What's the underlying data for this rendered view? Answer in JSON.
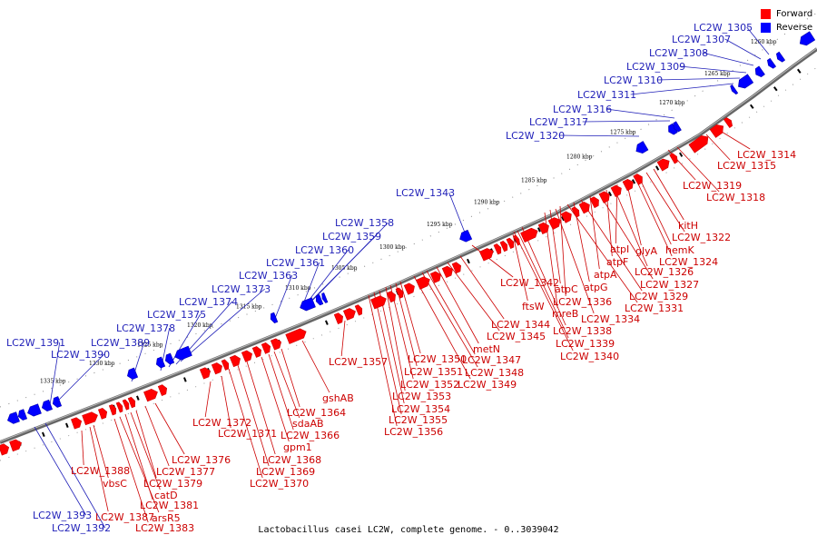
{
  "caption": "Lactobacillus casei LC2W, complete genome. - 0..3039042",
  "legend": [
    {
      "label": "Forward",
      "color": "#ff0000"
    },
    {
      "label": "Reverse",
      "color": "#0000ff"
    }
  ],
  "colors": {
    "forward": "#ff0000",
    "forward_dark": "#cc0000",
    "reverse": "#0000ff",
    "reverse_dark": "#0000b0",
    "forward_label": "#cc0000",
    "reverse_label": "#1f1fb8",
    "backbone": "#666666"
  },
  "scale_ticks": [
    "1260 kbp",
    "1265 kbp",
    "1270 kbp",
    "1275 kbp",
    "1280 kbp",
    "1285 kbp",
    "1290 kbp",
    "1295 kbp",
    "1300 kbp",
    "1305 kbp",
    "1310 kbp",
    "1315 kbp",
    "1320 kbp",
    "1325 kbp",
    "1330 kbp",
    "1335 kbp"
  ],
  "reverse_genes": [
    "LC2W_1305",
    "LC2W_1307",
    "LC2W_1308",
    "LC2W_1309",
    "LC2W_1310",
    "LC2W_1311",
    "LC2W_1316",
    "LC2W_1317",
    "LC2W_1320",
    "LC2W_1343",
    "LC2W_1358",
    "LC2W_1359",
    "LC2W_1360",
    "LC2W_1361",
    "LC2W_1363",
    "LC2W_1373",
    "LC2W_1374",
    "LC2W_1375",
    "LC2W_1378",
    "LC2W_1389",
    "LC2W_1391",
    "LC2W_1390",
    "LC2W_1393",
    "LC2W_1392"
  ],
  "forward_genes": [
    "LC2W_1314",
    "LC2W_1315",
    "LC2W_1319",
    "LC2W_1318",
    "kitH",
    "LC2W_1322",
    "hemK",
    "LC2W_1324",
    "glyA",
    "atpI",
    "LC2W_1326",
    "atpF",
    "LC2W_1327",
    "atpA",
    "LC2W_1329",
    "atpG",
    "LC2W_1331",
    "atpC",
    "LC2W_1342",
    "LC2W_1336",
    "ftsW",
    "mreB",
    "LC2W_1334",
    "LC2W_1338",
    "LC2W_1339",
    "LC2W_1340",
    "LC2W_1344",
    "LC2W_1345",
    "metN",
    "LC2W_1347",
    "LC2W_1350",
    "LC2W_1348",
    "LC2W_1351",
    "LC2W_1349",
    "LC2W_1352",
    "LC2W_1353",
    "LC2W_1354",
    "LC2W_1355",
    "LC2W_1356",
    "LC2W_1357",
    "gshAB",
    "LC2W_1364",
    "sdaAB",
    "LC2W_1366",
    "gpm1",
    "LC2W_1368",
    "LC2W_1369",
    "LC2W_1370",
    "LC2W_1372",
    "LC2W_1371",
    "LC2W_1376",
    "LC2W_1377",
    "LC2W_1379",
    "catD",
    "LC2W_1381",
    "arsR5",
    "LC2W_1383",
    "LC2W_1387",
    "vbsC",
    "LC2W_1388"
  ]
}
